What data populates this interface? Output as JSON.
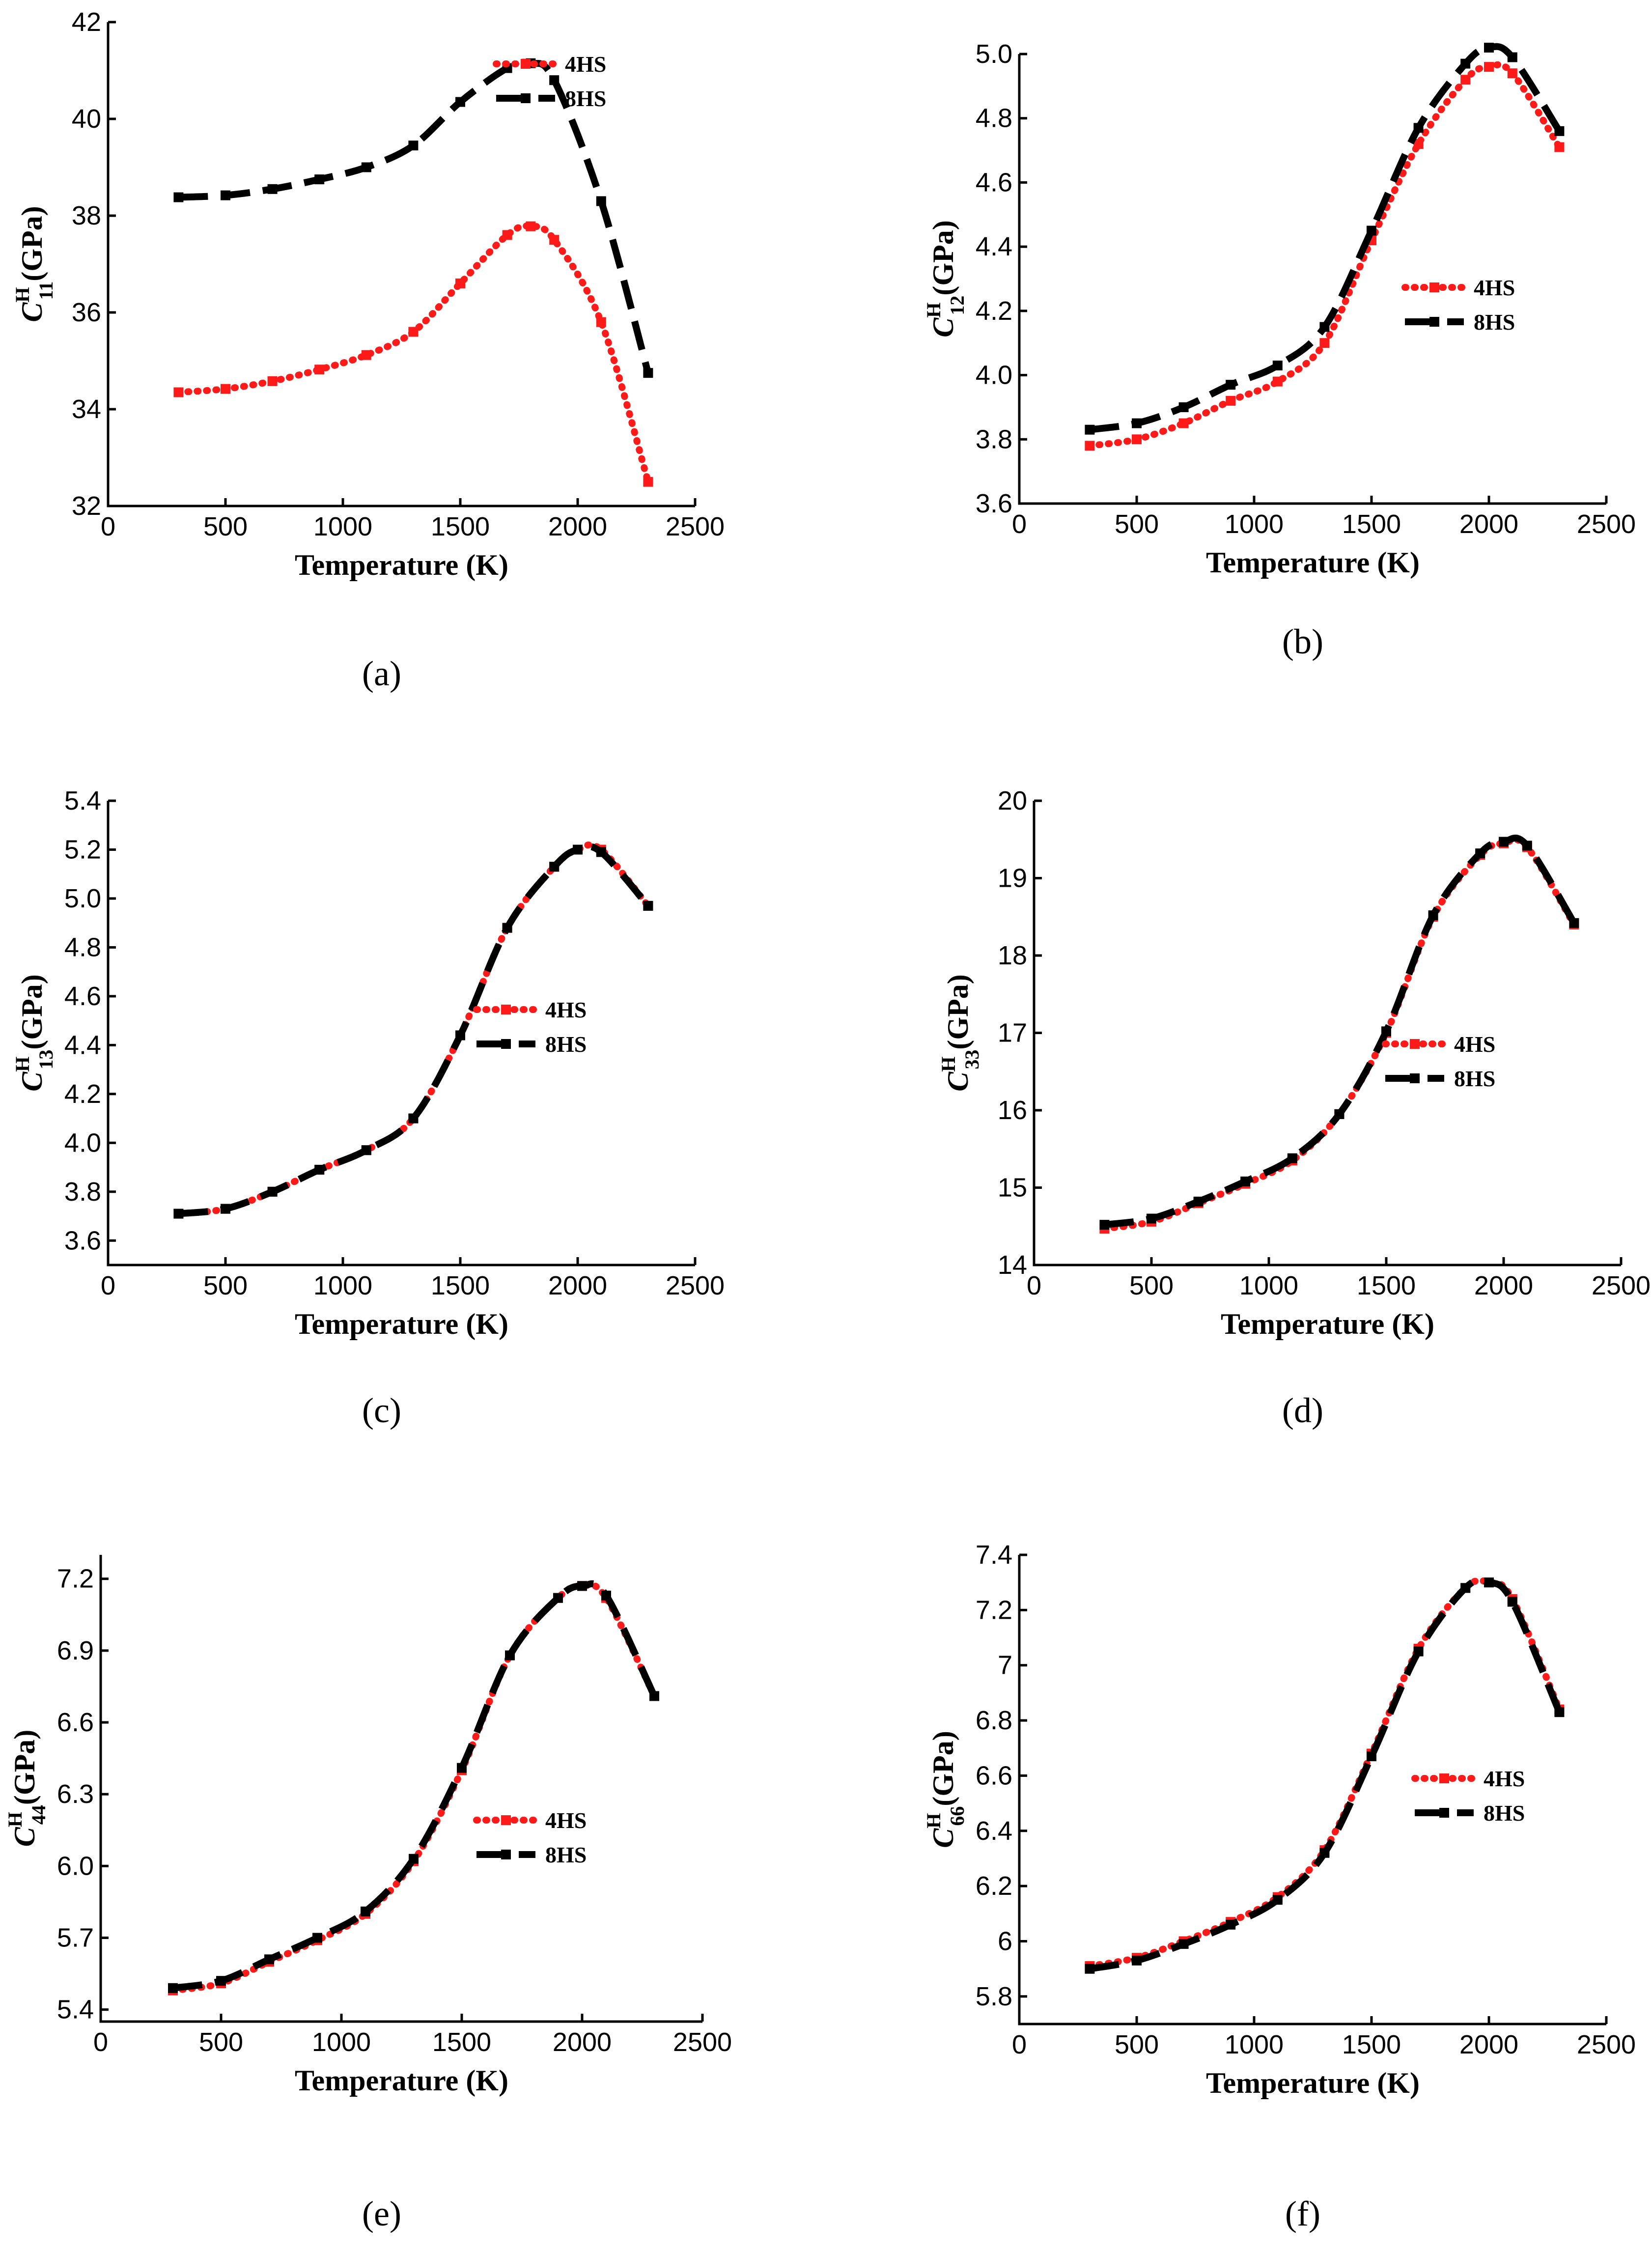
{
  "colors": {
    "series_4HS": "#ff1a1a",
    "series_8HS": "#000000",
    "axis": "#000000"
  },
  "chart_data": [
    {
      "type": "line",
      "caption": "(a)",
      "ylabel_symbol": "C",
      "ylabel_sup": "H",
      "ylabel_sub": "11",
      "ylabel_unit": "(GPa)",
      "xlabel": "Temperature (K)",
      "xlim": [
        0,
        2500
      ],
      "ylim": [
        32,
        42
      ],
      "xticks": [
        0,
        500,
        1000,
        1500,
        2000,
        2500
      ],
      "yticks": [
        32,
        34,
        36,
        38,
        40,
        42
      ],
      "legend_position": "top-right",
      "x": [
        300,
        500,
        700,
        900,
        1100,
        1300,
        1500,
        1700,
        1800,
        1900,
        2100,
        2300
      ],
      "series": [
        {
          "name": "4HS",
          "values": [
            34.35,
            34.42,
            34.58,
            34.82,
            35.12,
            35.6,
            36.6,
            37.6,
            37.78,
            37.5,
            35.8,
            32.5
          ]
        },
        {
          "name": "8HS",
          "values": [
            38.38,
            38.42,
            38.55,
            38.75,
            39.0,
            39.45,
            40.35,
            41.05,
            41.15,
            40.8,
            38.3,
            34.75
          ]
        }
      ]
    },
    {
      "type": "line",
      "caption": "(b)",
      "ylabel_symbol": "C",
      "ylabel_sup": "H",
      "ylabel_sub": "12",
      "ylabel_unit": "(GPa)",
      "xlabel": "Temperature (K)",
      "xlim": [
        0,
        2500
      ],
      "ylim": [
        3.6,
        5.0
      ],
      "xticks": [
        0,
        500,
        1000,
        1500,
        2000,
        2500
      ],
      "yticks": [
        3.6,
        3.8,
        4.0,
        4.2,
        4.4,
        4.6,
        4.8,
        5.0
      ],
      "legend_position": "center-right",
      "x": [
        300,
        500,
        700,
        900,
        1100,
        1300,
        1500,
        1700,
        1900,
        2000,
        2100,
        2300
      ],
      "series": [
        {
          "name": "4HS",
          "values": [
            3.78,
            3.8,
            3.85,
            3.92,
            3.98,
            4.1,
            4.42,
            4.72,
            4.92,
            4.96,
            4.94,
            4.71
          ]
        },
        {
          "name": "8HS",
          "values": [
            3.83,
            3.85,
            3.9,
            3.97,
            4.03,
            4.15,
            4.45,
            4.77,
            4.97,
            5.02,
            4.99,
            4.76
          ]
        }
      ]
    },
    {
      "type": "line",
      "caption": "(c)",
      "ylabel_symbol": "C",
      "ylabel_sup": "H",
      "ylabel_sub": "13",
      "ylabel_unit": "(GPa)",
      "xlabel": "Temperature (K)",
      "xlim": [
        0,
        2500
      ],
      "ylim": [
        3.5,
        5.4
      ],
      "xticks": [
        0,
        500,
        1000,
        1500,
        2000,
        2500
      ],
      "yticks": [
        3.6,
        3.8,
        4.0,
        4.2,
        4.4,
        4.6,
        4.8,
        5.0,
        5.2,
        5.4
      ],
      "legend_position": "center-right",
      "x": [
        300,
        500,
        700,
        900,
        1100,
        1300,
        1500,
        1700,
        1900,
        2000,
        2100,
        2300
      ],
      "series": [
        {
          "name": "4HS",
          "values": [
            3.71,
            3.73,
            3.8,
            3.89,
            3.97,
            4.1,
            4.44,
            4.88,
            5.13,
            5.2,
            5.2,
            4.97
          ]
        },
        {
          "name": "8HS",
          "values": [
            3.71,
            3.73,
            3.8,
            3.89,
            3.97,
            4.1,
            4.44,
            4.88,
            5.13,
            5.2,
            5.19,
            4.97
          ]
        }
      ]
    },
    {
      "type": "line",
      "caption": "(d)",
      "ylabel_symbol": "C",
      "ylabel_sup": "H",
      "ylabel_sub": "33",
      "ylabel_unit": "(GPa)",
      "xlabel": "Temperature (K)",
      "xlim": [
        0,
        2500
      ],
      "ylim": [
        14,
        20
      ],
      "xticks": [
        0,
        500,
        1000,
        1500,
        2000,
        2500
      ],
      "yticks": [
        14,
        15,
        16,
        17,
        18,
        19,
        20
      ],
      "legend_position": "center-right",
      "x": [
        300,
        500,
        700,
        900,
        1100,
        1300,
        1500,
        1700,
        1900,
        2000,
        2100,
        2300
      ],
      "series": [
        {
          "name": "4HS",
          "values": [
            14.47,
            14.56,
            14.8,
            15.05,
            15.35,
            15.95,
            17.0,
            18.5,
            19.3,
            19.45,
            19.4,
            18.4
          ]
        },
        {
          "name": "8HS",
          "values": [
            14.52,
            14.6,
            14.82,
            15.08,
            15.38,
            15.95,
            17.02,
            18.52,
            19.32,
            19.47,
            19.42,
            18.42
          ]
        }
      ]
    },
    {
      "type": "line",
      "caption": "(e)",
      "ylabel_symbol": "C",
      "ylabel_sup": "H",
      "ylabel_sub": "44",
      "ylabel_unit": "(GPa)",
      "xlabel": "Temperature (K)",
      "xlim": [
        0,
        2500
      ],
      "ylim": [
        5.35,
        7.3
      ],
      "xticks": [
        0,
        500,
        1000,
        1500,
        2000,
        2500
      ],
      "yticks": [
        5.4,
        5.7,
        6.0,
        6.3,
        6.6,
        6.9,
        7.2
      ],
      "legend_position": "center-right",
      "x": [
        300,
        500,
        700,
        900,
        1100,
        1300,
        1500,
        1700,
        1900,
        2000,
        2100,
        2300
      ],
      "series": [
        {
          "name": "4HS",
          "values": [
            5.48,
            5.51,
            5.6,
            5.69,
            5.8,
            6.02,
            6.4,
            6.88,
            7.12,
            7.17,
            7.12,
            6.71
          ]
        },
        {
          "name": "8HS",
          "values": [
            5.49,
            5.52,
            5.61,
            5.7,
            5.81,
            6.03,
            6.41,
            6.88,
            7.12,
            7.17,
            7.13,
            6.71
          ]
        }
      ]
    },
    {
      "type": "line",
      "caption": "(f)",
      "ylabel_symbol": "C",
      "ylabel_sup": "H",
      "ylabel_sub": "66",
      "ylabel_unit": "(GPa)",
      "xlabel": "Temperature (K)",
      "xlim": [
        0,
        2500
      ],
      "ylim": [
        5.7,
        7.4
      ],
      "xticks": [
        0,
        500,
        1000,
        1500,
        2000,
        2500
      ],
      "yticks": [
        5.8,
        6.0,
        6.2,
        6.4,
        6.6,
        6.8,
        7.0,
        7.2,
        7.4
      ],
      "legend_position": "center-right",
      "x": [
        300,
        500,
        700,
        900,
        1100,
        1300,
        1500,
        1700,
        1900,
        2000,
        2100,
        2300
      ],
      "series": [
        {
          "name": "4HS",
          "values": [
            5.91,
            5.94,
            6.0,
            6.07,
            6.16,
            6.33,
            6.68,
            7.06,
            7.28,
            7.3,
            7.24,
            6.84
          ]
        },
        {
          "name": "8HS",
          "values": [
            5.9,
            5.93,
            5.99,
            6.06,
            6.15,
            6.32,
            6.67,
            7.05,
            7.28,
            7.3,
            7.23,
            6.83
          ]
        }
      ]
    }
  ]
}
